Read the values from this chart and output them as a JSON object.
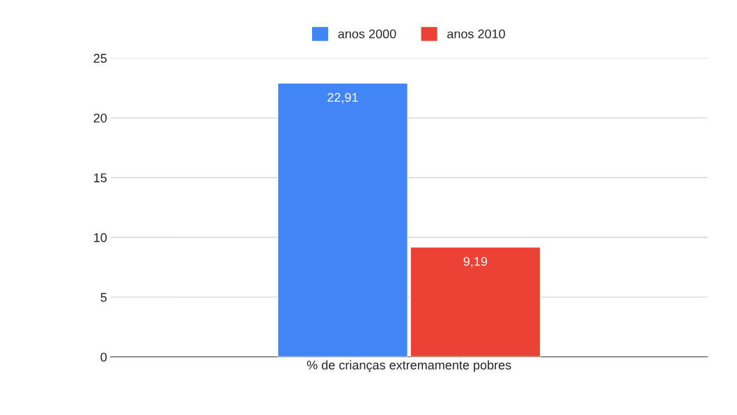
{
  "chart_data": {
    "type": "bar",
    "categories": [
      "% de crianças extremamente pobres"
    ],
    "series": [
      {
        "name": "anos 2000",
        "color": "#4285f4",
        "values": [
          22.91
        ],
        "value_labels": [
          "22,91"
        ]
      },
      {
        "name": "anos 2010",
        "color": "#ea4335",
        "values": [
          9.19
        ],
        "value_labels": [
          "9,19"
        ]
      }
    ],
    "ylim": [
      0,
      25
    ],
    "yticks": [
      0,
      5,
      10,
      15,
      20,
      25
    ],
    "grid": "y",
    "legend": "top"
  }
}
